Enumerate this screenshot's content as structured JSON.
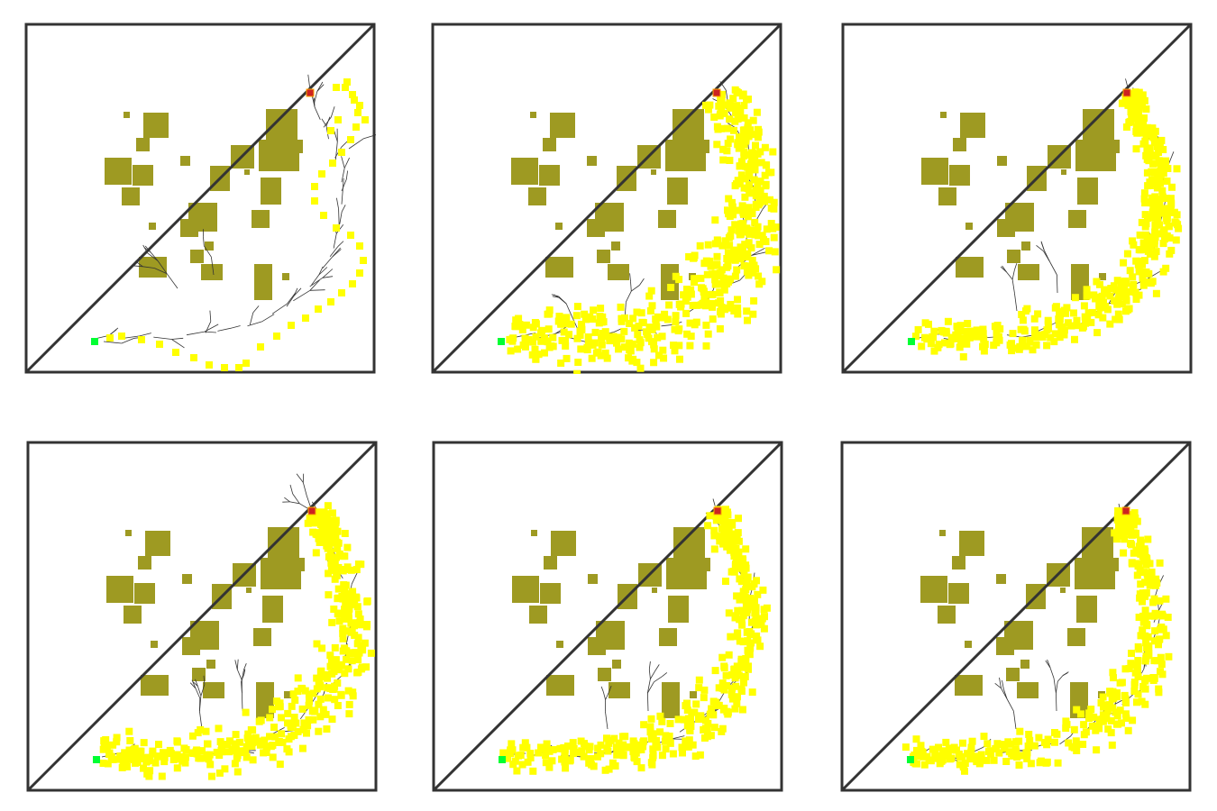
{
  "colors": {
    "background": "#ffffff",
    "frame": "#333333",
    "diagonal": "#333333",
    "obstacle": "#9e9a22",
    "sample": "#ffff00",
    "tree_edge": "#333333",
    "start": "#00ff33",
    "goal": "#cc2222"
  },
  "icons": {
    "start": "green-square-start-marker",
    "goal": "red-square-goal-marker"
  },
  "panels": [
    {
      "id": "panel-1",
      "variant": "sparse-path"
    },
    {
      "id": "panel-2",
      "variant": "dense-wide-band"
    },
    {
      "id": "panel-3",
      "variant": "dense-narrow-band"
    },
    {
      "id": "panel-4",
      "variant": "dense-band-branch-top"
    },
    {
      "id": "panel-5",
      "variant": "dense-band"
    },
    {
      "id": "panel-6",
      "variant": "dense-band-low-right"
    }
  ]
}
